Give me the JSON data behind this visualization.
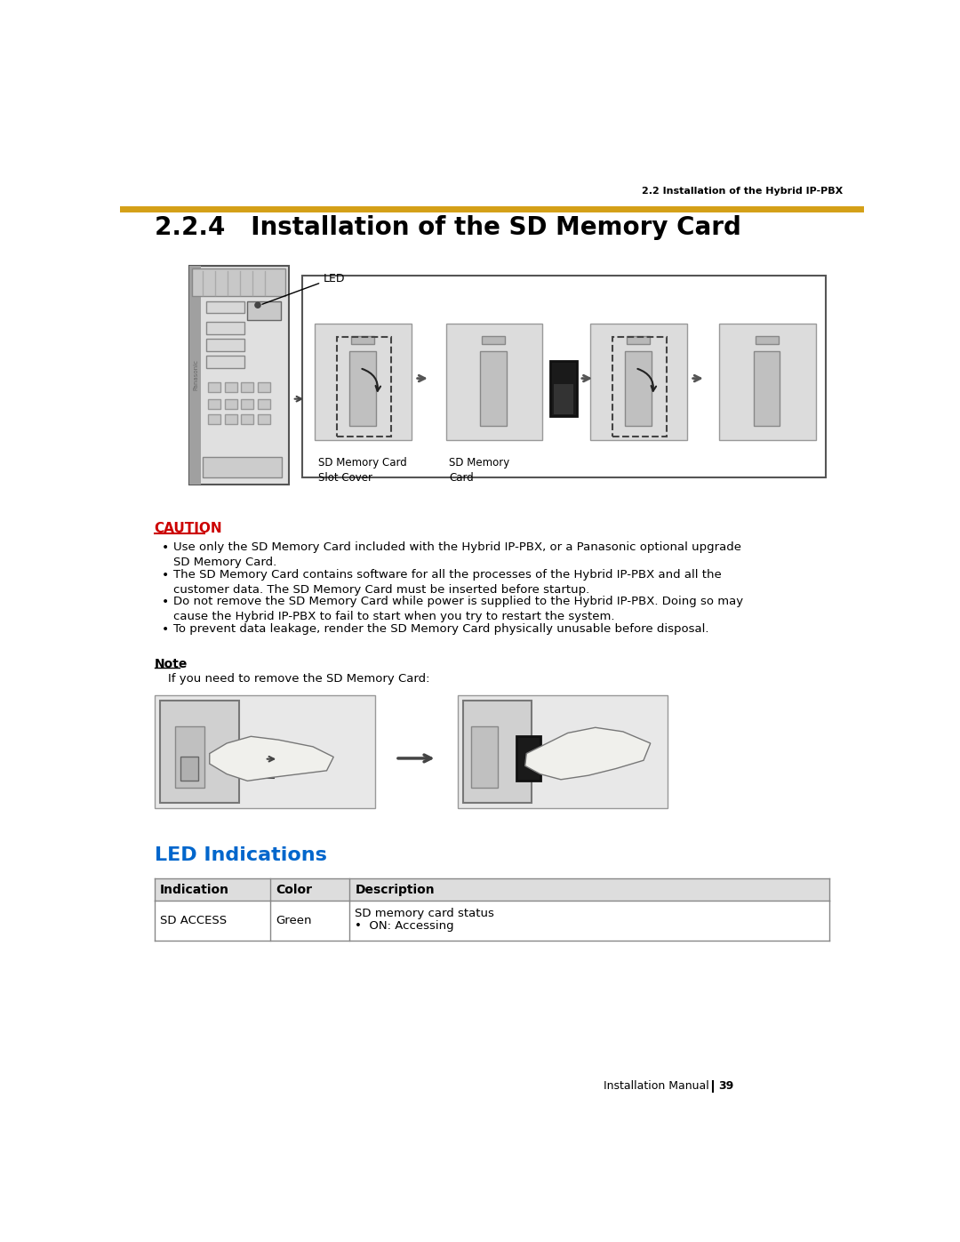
{
  "page_bg": "#ffffff",
  "header_text": "2.2 Installation of the Hybrid IP-PBX",
  "header_line_color": "#D4A017",
  "title": "2.2.4   Installation of the SD Memory Card",
  "title_fontsize": 20,
  "caution_text": "CAUTION",
  "caution_color": "#CC0000",
  "bullet_points": [
    "Use only the SD Memory Card included with the Hybrid IP-PBX, or a Panasonic optional upgrade\nSD Memory Card.",
    "The SD Memory Card contains software for all the processes of the Hybrid IP-PBX and all the\ncustomer data. The SD Memory Card must be inserted before startup.",
    "Do not remove the SD Memory Card while power is supplied to the Hybrid IP-PBX. Doing so may\ncause the Hybrid IP-PBX to fail to start when you try to restart the system.",
    "To prevent data leakage, render the SD Memory Card physically unusable before disposal."
  ],
  "note_title": "Note",
  "note_text": "If you need to remove the SD Memory Card:",
  "led_section_title": "LED Indications",
  "led_section_color": "#0066CC",
  "table_headers": [
    "Indication",
    "Color",
    "Description"
  ],
  "table_row": [
    "SD ACCESS",
    "Green",
    "SD memory card status\n•  ON: Accessing"
  ],
  "footer_text": "Installation Manual",
  "footer_page": "39",
  "led_label": "LED",
  "diagram_labels": [
    "SD Memory Card\nSlot Cover",
    "SD Memory\nCard"
  ]
}
